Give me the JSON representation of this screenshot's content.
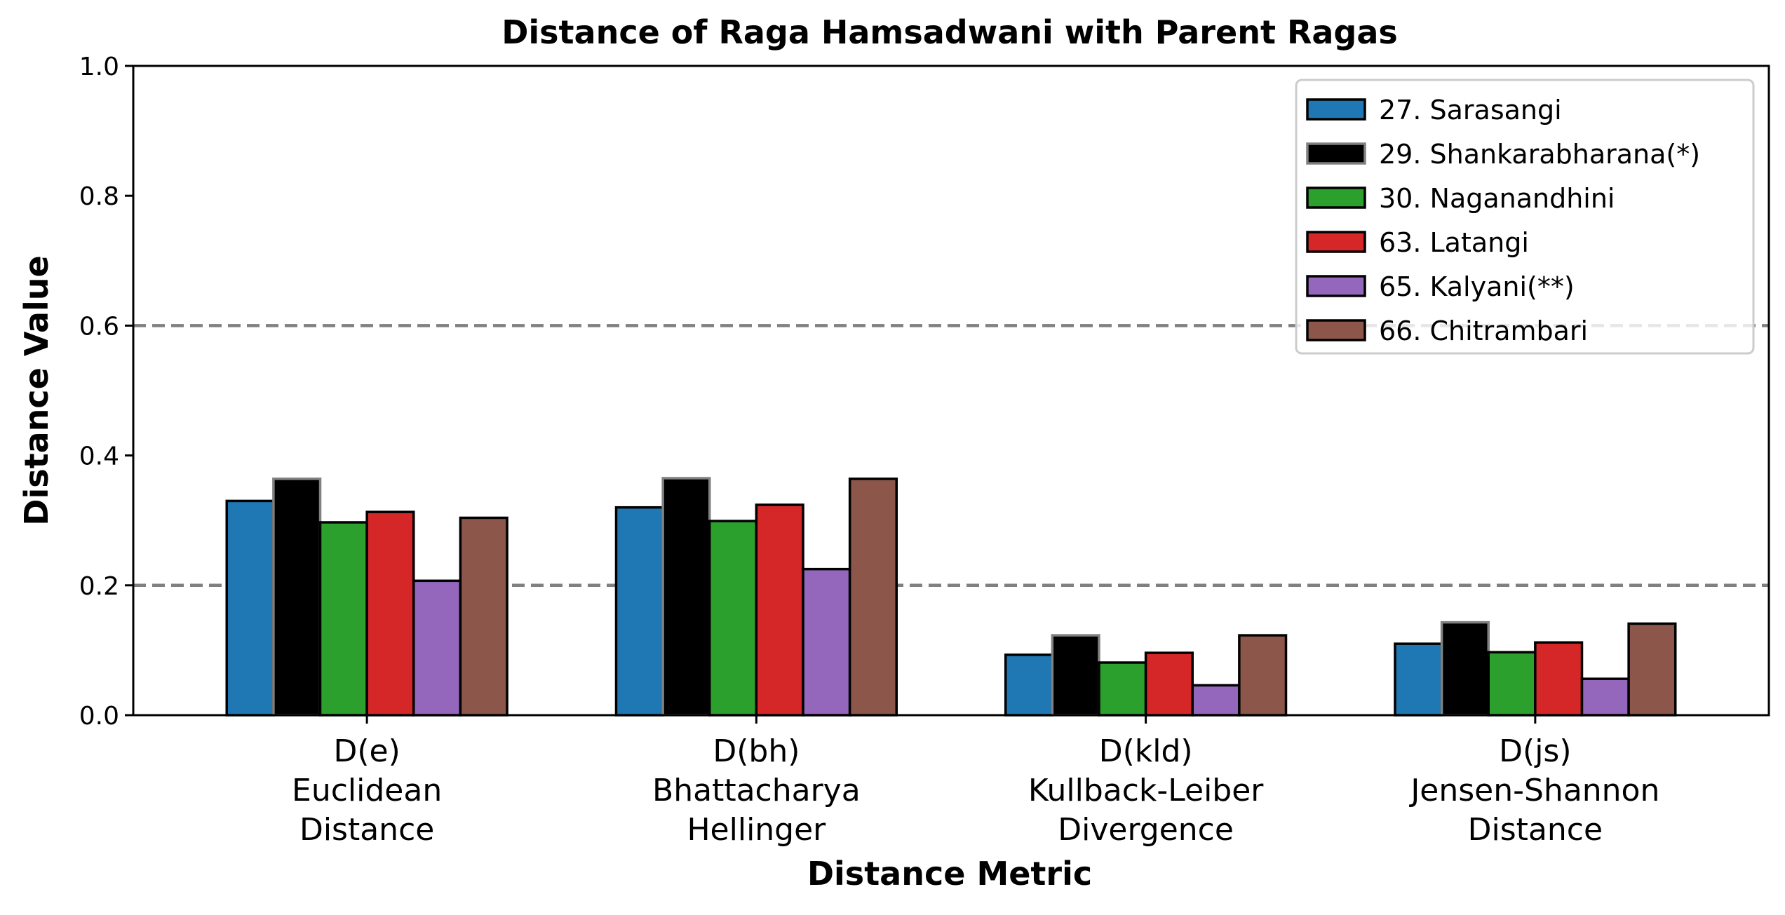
{
  "chart_data": {
    "type": "bar",
    "title": "Distance of Raga Hamsadwani with Parent Ragas",
    "xlabel": "Distance Metric",
    "ylabel": "Distance Value",
    "ylim": [
      0,
      1.0
    ],
    "yticks": [
      "0.0",
      "0.2",
      "0.4",
      "0.6",
      "0.8",
      "1.0"
    ],
    "reference_lines": [
      0.2,
      0.6
    ],
    "legend_position": "top-right",
    "grid": false,
    "categories": [
      [
        "D(e)",
        "Euclidean",
        "Distance"
      ],
      [
        "D(bh)",
        "Bhattacharya",
        "Hellinger"
      ],
      [
        "D(kld)",
        "Kullback-Leiber",
        "Divergence"
      ],
      [
        "D(js)",
        "Jensen-Shannon",
        "Distance"
      ]
    ],
    "series": [
      {
        "name": "27. Sarasangi",
        "color": "#1f77b4",
        "edge": "#000000",
        "values": [
          0.33,
          0.32,
          0.093,
          0.11
        ]
      },
      {
        "name": "29. Shankarabharana(*)",
        "color": "#000000",
        "edge": "#808080",
        "values": [
          0.364,
          0.365,
          0.123,
          0.143
        ]
      },
      {
        "name": "30. Naganandhini",
        "color": "#2ca02c",
        "edge": "#000000",
        "values": [
          0.297,
          0.299,
          0.081,
          0.097
        ]
      },
      {
        "name": "63. Latangi",
        "color": "#d62728",
        "edge": "#000000",
        "values": [
          0.313,
          0.324,
          0.096,
          0.112
        ]
      },
      {
        "name": "65. Kalyani(**)",
        "color": "#9467bd",
        "edge": "#000000",
        "values": [
          0.207,
          0.225,
          0.046,
          0.056
        ]
      },
      {
        "name": "66. Chitrambari",
        "color": "#8c564b",
        "edge": "#000000",
        "values": [
          0.304,
          0.364,
          0.123,
          0.141
        ]
      }
    ]
  }
}
